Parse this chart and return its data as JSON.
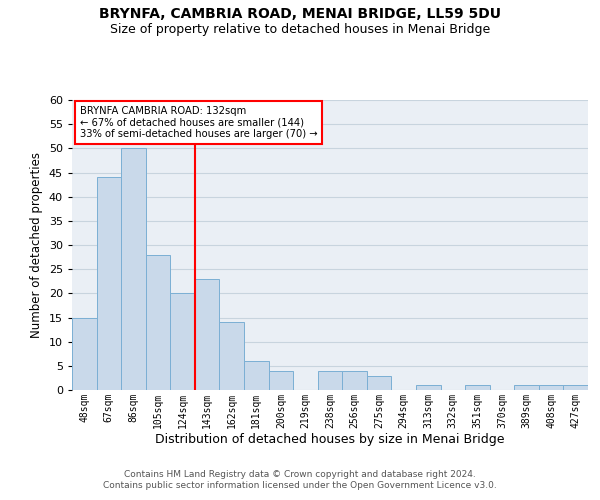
{
  "title": "BRYNFA, CAMBRIA ROAD, MENAI BRIDGE, LL59 5DU",
  "subtitle": "Size of property relative to detached houses in Menai Bridge",
  "xlabel": "Distribution of detached houses by size in Menai Bridge",
  "ylabel": "Number of detached properties",
  "categories": [
    "48sqm",
    "67sqm",
    "86sqm",
    "105sqm",
    "124sqm",
    "143sqm",
    "162sqm",
    "181sqm",
    "200sqm",
    "219sqm",
    "238sqm",
    "256sqm",
    "275sqm",
    "294sqm",
    "313sqm",
    "332sqm",
    "351sqm",
    "370sqm",
    "389sqm",
    "408sqm",
    "427sqm"
  ],
  "values": [
    15,
    44,
    50,
    28,
    20,
    23,
    14,
    6,
    4,
    0,
    4,
    4,
    3,
    0,
    1,
    0,
    1,
    0,
    1,
    1,
    1
  ],
  "bar_color": "#c9d9ea",
  "bar_edge_color": "#7bafd4",
  "bar_width": 1.0,
  "annotation_text_line1": "BRYNFA CAMBRIA ROAD: 132sqm",
  "annotation_text_line2": "← 67% of detached houses are smaller (144)",
  "annotation_text_line3": "33% of semi-detached houses are larger (70) →",
  "annotation_box_color": "white",
  "annotation_box_edge_color": "red",
  "vline_color": "red",
  "vline_x": 4.5,
  "ylim": [
    0,
    60
  ],
  "yticks": [
    0,
    5,
    10,
    15,
    20,
    25,
    30,
    35,
    40,
    45,
    50,
    55,
    60
  ],
  "grid_color": "#c8d4de",
  "bg_color": "#eaeff5",
  "footer_line1": "Contains HM Land Registry data © Crown copyright and database right 2024.",
  "footer_line2": "Contains public sector information licensed under the Open Government Licence v3.0."
}
